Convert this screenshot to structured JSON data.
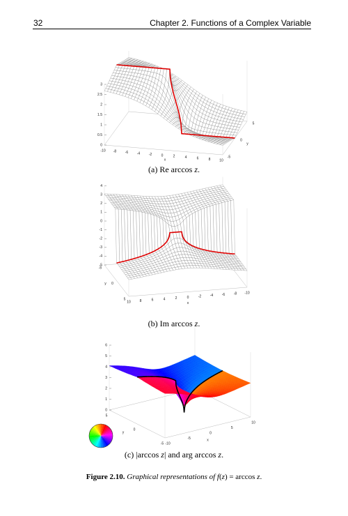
{
  "header": {
    "page_number": "32",
    "chapter": "Chapter 2.  Functions of a Complex Variable"
  },
  "figures": [
    {
      "zticks": [
        "0",
        "0.5",
        "1",
        "1.5",
        "2",
        "2.5",
        "3"
      ],
      "xticks": [
        "-10",
        "-8",
        "-6",
        "-4",
        "-2",
        "0",
        "2",
        "4",
        "6",
        "8",
        "10"
      ],
      "yticks": [
        "-5",
        "0",
        "5"
      ],
      "xlabel": "x",
      "ylabel": "y",
      "caption": [
        "(a) Re arccos ",
        "z",
        "."
      ]
    },
    {
      "zticks": [
        "4",
        "3",
        "2",
        "1",
        "0",
        "-1",
        "-2",
        "-3",
        "-4",
        "-5"
      ],
      "xticks": [
        "10",
        "8",
        "6",
        "4",
        "2",
        "0",
        "-2",
        "-4",
        "-6",
        "-8",
        "-10"
      ],
      "yticks": [
        "5",
        "0",
        "-5"
      ],
      "xlabel": "x",
      "ylabel": "y",
      "caption": [
        "(b) Im arccos ",
        "z",
        "."
      ]
    },
    {
      "zticks": [
        "0",
        "1",
        "2",
        "3",
        "4",
        "5",
        "6"
      ],
      "xticks": [
        "-10",
        "-5",
        "0",
        "5",
        "10"
      ],
      "yticks": [
        "-5",
        "0",
        "5"
      ],
      "xlabel": "x",
      "ylabel": "y",
      "caption": [
        "(c) |arccos ",
        "z",
        "| and arg arccos ",
        "z",
        "."
      ]
    }
  ],
  "figure_caption": {
    "label": "Figure 2.10.",
    "parts": [
      "Graphical representations of ",
      "f",
      "(",
      "z",
      ") = arccos ",
      "z",
      "."
    ]
  }
}
